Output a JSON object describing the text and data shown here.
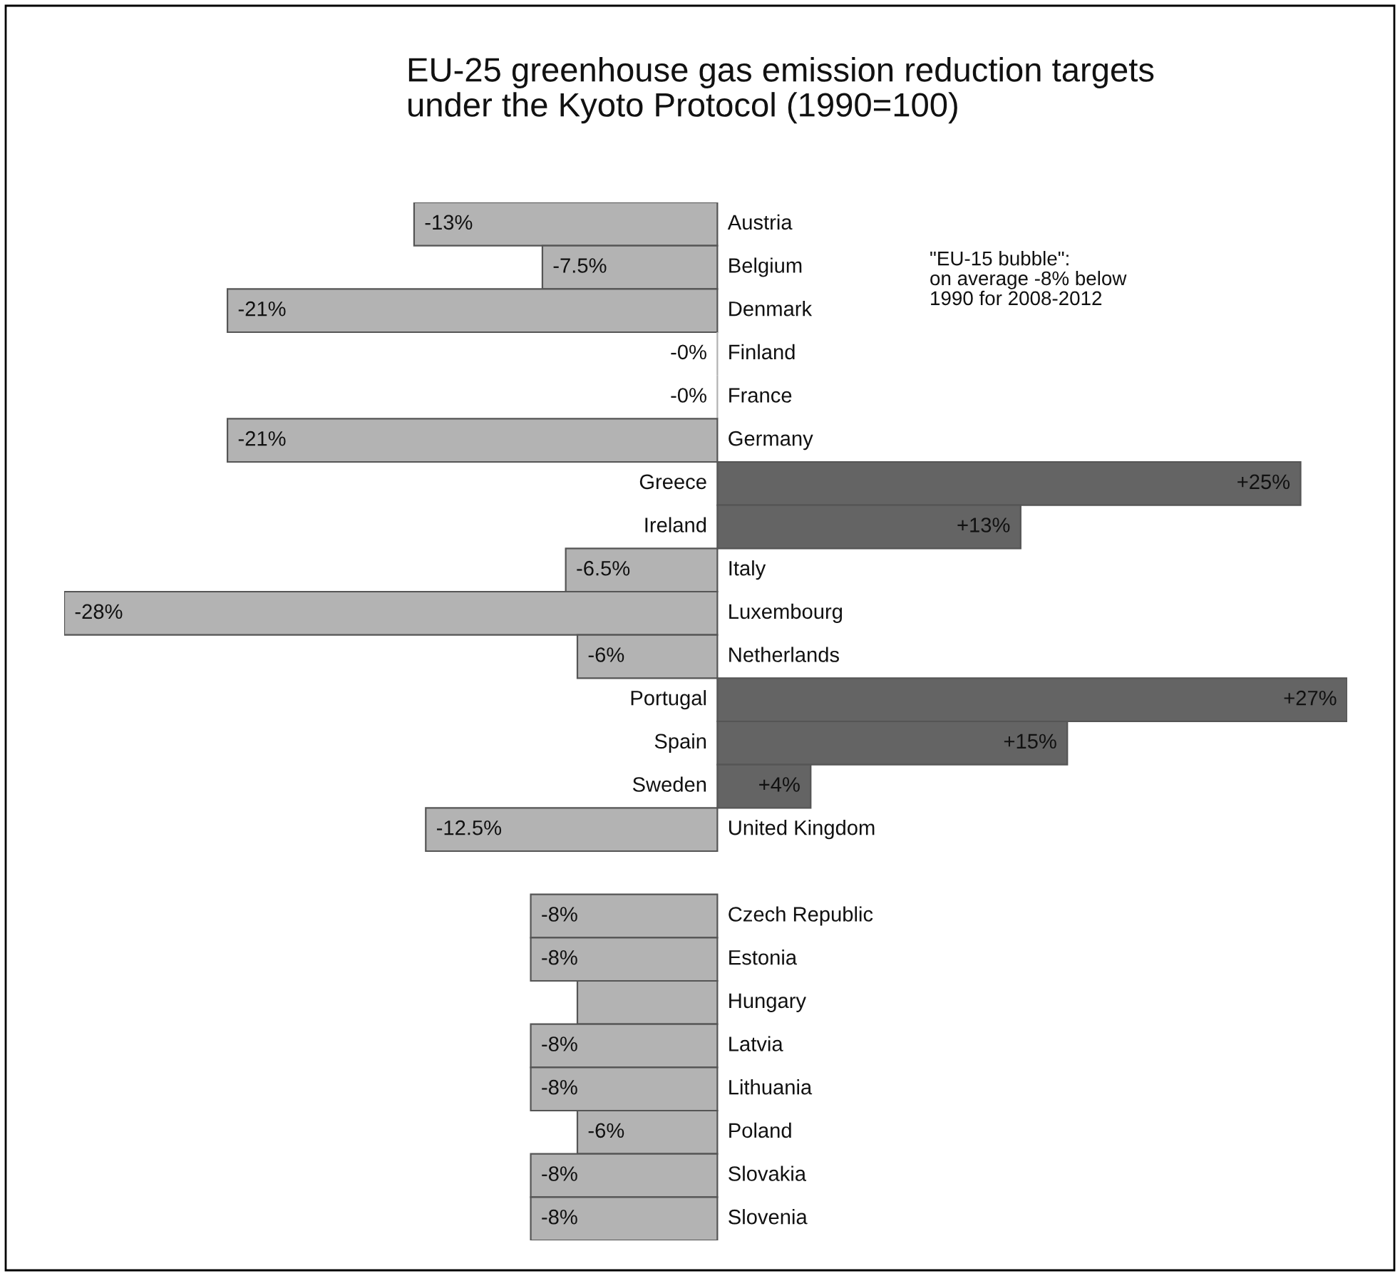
{
  "chart_data": {
    "type": "bar",
    "orientation": "horizontal",
    "title": "EU-25 greenhouse gas emission reduction targets\nunder the Kyoto Protocol (1990=100)",
    "annotations": [
      "\"EU-15 bubble\":\non average -8% below\n1990 for 2008-2012"
    ],
    "categories": [
      "Austria",
      "Belgium",
      "Denmark",
      "Finland",
      "France",
      "Germany",
      "Greece",
      "Ireland",
      "Italy",
      "Luxembourg",
      "Netherlands",
      "Portugal",
      "Spain",
      "Sweden",
      "United Kingdom",
      null,
      "Czech Republic",
      "Estonia",
      "Hungary",
      "Latvia",
      "Lithuania",
      "Poland",
      "Slovakia",
      "Slovenia"
    ],
    "values": [
      -13,
      -7.5,
      -21,
      0,
      0,
      -21,
      25,
      13,
      -6.5,
      -28,
      -6,
      27,
      15,
      4,
      -12.5,
      null,
      -8,
      -8,
      -6,
      -8,
      -8,
      -6,
      -8,
      -8
    ],
    "value_labels": [
      "-13%",
      "-7.5%",
      "-21%",
      "-0%",
      "-0%",
      "-21%",
      "+25%",
      "+13%",
      "-6.5%",
      "-28%",
      "-6%",
      "+27%",
      "+15%",
      "+4%",
      "-12.5%",
      null,
      "-8%",
      "-8%",
      null,
      "-8%",
      "-8%",
      "-6%",
      "-8%",
      "-8%"
    ],
    "colors": [
      "#b3b3b3",
      "#b3b3b3",
      "#b3b3b3",
      "#b3b3b3",
      "#b3b3b3",
      "#b3b3b3",
      "#646464",
      "#646464",
      "#b3b3b3",
      "#b3b3b3",
      "#b3b3b3",
      "#646464",
      "#646464",
      "#646464",
      "#b3b3b3",
      null,
      "#b3b3b3",
      "#b3b3b3",
      "#b3b3b3",
      "#b3b3b3",
      "#b3b3b3",
      "#b3b3b3",
      "#b3b3b3",
      "#b3b3b3"
    ],
    "legend": false
  }
}
